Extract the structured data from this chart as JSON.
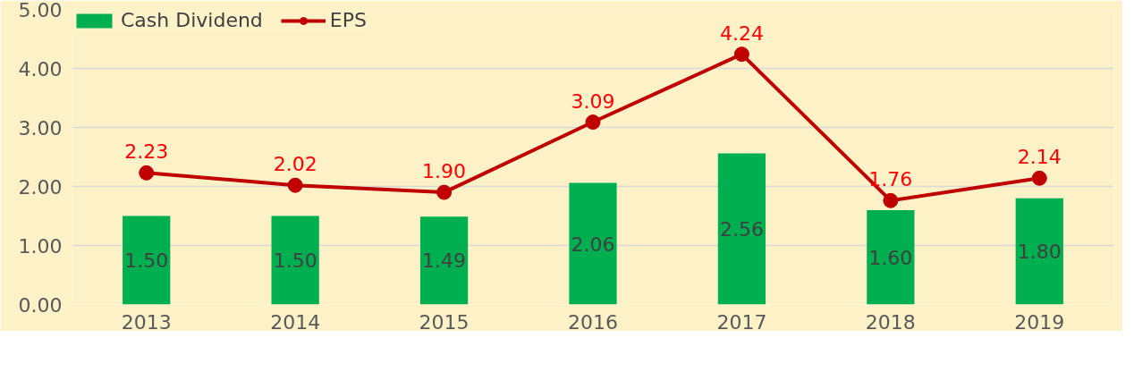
{
  "chart_data": {
    "type": "bar",
    "categories": [
      "2013",
      "2014",
      "2015",
      "2016",
      "2017",
      "2018",
      "2019"
    ],
    "ylim": [
      0,
      5
    ],
    "yticks": [
      {
        "value": 0,
        "label": "0.00"
      },
      {
        "value": 1,
        "label": "1.00"
      },
      {
        "value": 2,
        "label": "2.00"
      },
      {
        "value": 3,
        "label": "3.00"
      },
      {
        "value": 4,
        "label": "4.00"
      },
      {
        "value": 5,
        "label": "5.00"
      }
    ],
    "grid": "y",
    "legend": "top left",
    "marker": "circle",
    "line_style": "solid",
    "series": [
      {
        "name": "Cash Dividend",
        "color": "#00b050",
        "values": [
          1.5,
          1.5,
          1.49,
          2.06,
          2.56,
          1.6,
          1.8
        ],
        "value_labels": [
          "1.50",
          "1.50",
          "1.49",
          "2.06",
          "2.56",
          "1.60",
          "1.80"
        ]
      },
      {
        "name": "EPS",
        "type": "line",
        "color": "#c00000",
        "values": [
          2.23,
          2.02,
          1.9,
          3.09,
          4.24,
          1.76,
          2.14
        ],
        "value_labels": [
          "2.23",
          "2.02",
          "1.90",
          "3.09",
          "4.24",
          "1.76",
          "2.14"
        ]
      }
    ]
  }
}
